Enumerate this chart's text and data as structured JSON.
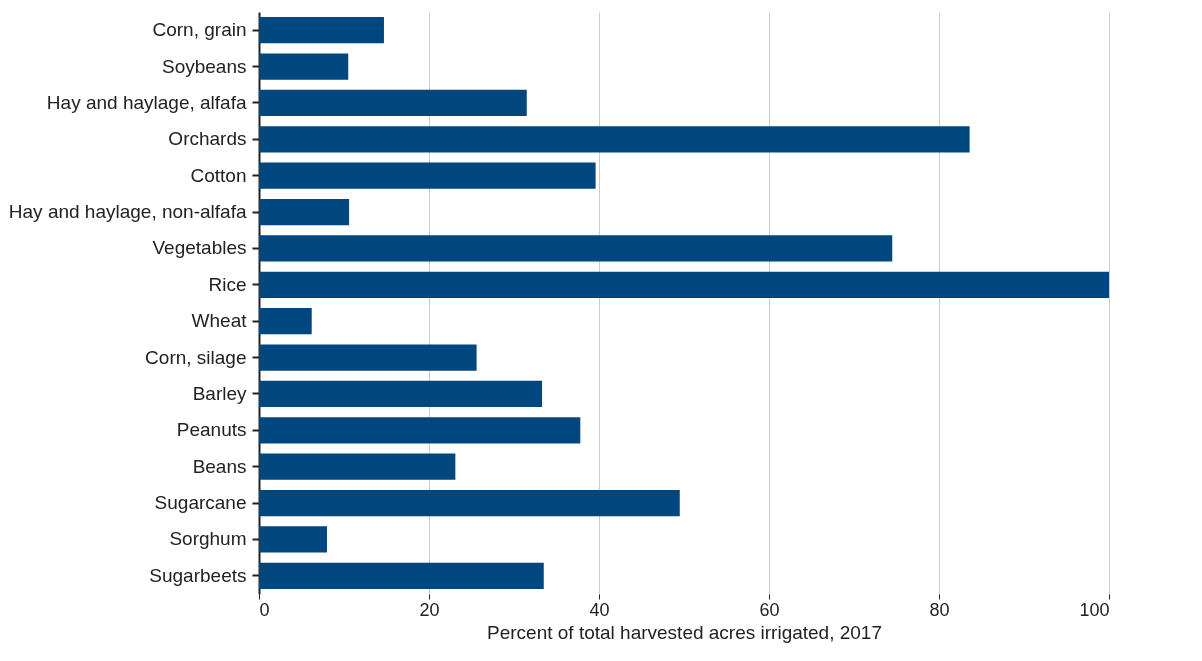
{
  "chart_data": {
    "type": "bar",
    "orientation": "horizontal",
    "xlabel": "Percent of total harvested acres irrigated, 2017",
    "categories": [
      "Corn, grain",
      "Soybeans",
      "Hay and haylage, alfafa",
      "Orchards",
      "Cotton",
      "Hay and haylage, non-alfafa",
      "Vegetables",
      "Rice",
      "Wheat",
      "Corn, silage",
      "Barley",
      "Peanuts",
      "Beans",
      "Sugarcane",
      "Sorghum",
      "Sugarbeets"
    ],
    "values": [
      14.7,
      10.5,
      31.5,
      83.6,
      39.6,
      10.6,
      74.5,
      100,
      6.2,
      25.6,
      33.3,
      37.8,
      23.1,
      49.5,
      8.0,
      33.5
    ],
    "color": "#00467f",
    "xlim": [
      0,
      100
    ],
    "xticks": [
      0,
      20,
      40,
      60,
      80,
      100
    ],
    "grid": "x"
  }
}
